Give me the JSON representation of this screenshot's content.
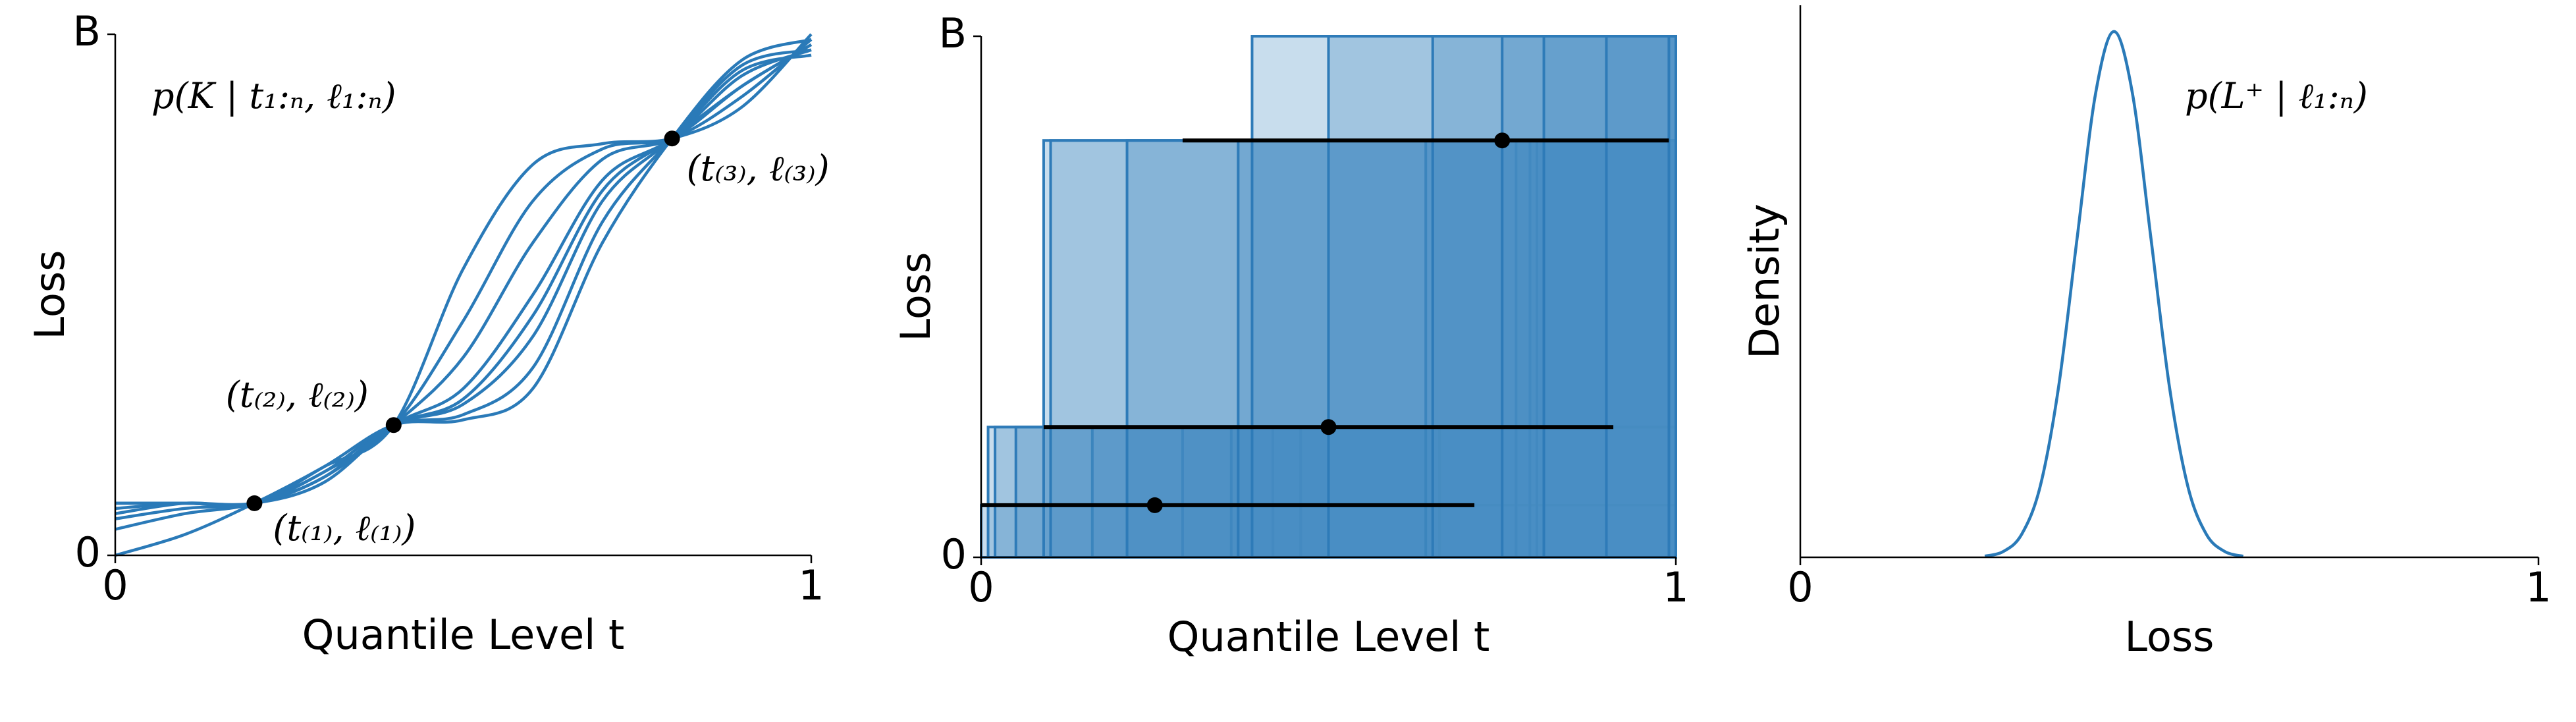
{
  "chart_data": [
    {
      "type": "line",
      "title": "p(K | t₁:ₙ, ℓ₁:ₙ)",
      "xlabel": "Quantile Level t",
      "ylabel": "Loss",
      "xlim": [
        0,
        1
      ],
      "ylim": [
        0,
        1
      ],
      "xticks": [
        0,
        1
      ],
      "yticks": [
        0,
        {
          "value": 1,
          "label": "B"
        }
      ],
      "color": "#2a7ab8",
      "x": [
        0,
        0.1,
        0.2,
        0.3,
        0.4,
        0.5,
        0.6,
        0.7,
        0.8,
        0.9,
        1
      ],
      "series": [
        {
          "values": [
            0.0,
            0.04,
            0.1,
            0.17,
            0.25,
            0.55,
            0.75,
            0.79,
            0.8,
            0.86,
            1.0
          ]
        },
        {
          "values": [
            0.05,
            0.08,
            0.1,
            0.16,
            0.25,
            0.45,
            0.68,
            0.78,
            0.8,
            0.88,
            0.99
          ]
        },
        {
          "values": [
            0.07,
            0.09,
            0.1,
            0.15,
            0.25,
            0.38,
            0.6,
            0.76,
            0.8,
            0.9,
            0.98
          ]
        },
        {
          "values": [
            0.09,
            0.1,
            0.1,
            0.14,
            0.25,
            0.32,
            0.5,
            0.72,
            0.8,
            0.92,
            0.97
          ]
        },
        {
          "values": [
            0.1,
            0.1,
            0.1,
            0.15,
            0.25,
            0.29,
            0.42,
            0.68,
            0.8,
            0.93,
            0.96
          ]
        },
        {
          "values": [
            0.1,
            0.1,
            0.1,
            0.16,
            0.25,
            0.27,
            0.36,
            0.64,
            0.8,
            0.94,
            0.97
          ]
        },
        {
          "values": [
            0.08,
            0.1,
            0.1,
            0.17,
            0.25,
            0.26,
            0.32,
            0.6,
            0.8,
            0.95,
            0.99
          ]
        },
        {
          "values": [
            0.1,
            0.1,
            0.1,
            0.15,
            0.25,
            0.3,
            0.46,
            0.7,
            0.8,
            0.9,
            0.98
          ]
        }
      ],
      "markers": {
        "color": "#000000",
        "x": [
          0.2,
          0.4,
          0.8
        ],
        "values": [
          0.1,
          0.25,
          0.8
        ]
      },
      "annotations": [
        "(t₍₁₎, ℓ₍₁₎)",
        "(t₍₂₎, ℓ₍₂₎)",
        "(t₍₃₎, ℓ₍₃₎)"
      ]
    },
    {
      "type": "bar",
      "xlabel": "Quantile Level t",
      "ylabel": "Loss",
      "xlim": [
        0,
        1
      ],
      "ylim": [
        0,
        1
      ],
      "xticks": [
        0,
        1
      ],
      "yticks": [
        0,
        {
          "value": 1,
          "label": "B"
        }
      ],
      "color": "#4a8fc4",
      "edgecolor": "#2e7bb8",
      "opacity": 0.3,
      "bars": {
        "x": [
          0,
          0.01,
          0.02,
          0.05,
          0.16,
          0.21,
          0.29,
          0.36,
          0.42,
          0.46,
          0.66,
          0.09,
          0.1,
          0.21,
          0.37,
          0.64,
          0.77,
          0.79,
          0.8,
          0.39,
          0.5,
          0.65,
          0.75,
          0.81,
          0.9,
          0.99
        ],
        "values": [
          0.1,
          0.25,
          0.25,
          0.25,
          0.25,
          0.25,
          0.25,
          0.25,
          0.25,
          0.25,
          0.25,
          0.8,
          0.8,
          0.8,
          0.8,
          0.8,
          0.8,
          0.8,
          0.8,
          1,
          1,
          1,
          1,
          1,
          1,
          1
        ]
      },
      "intervals": {
        "color": "#000000",
        "lo": [
          0,
          0.09,
          0.29
        ],
        "hi": [
          0.71,
          0.91,
          0.99
        ],
        "level": [
          0.1,
          0.25,
          0.8
        ],
        "point": [
          0.25,
          0.5,
          0.75
        ]
      }
    },
    {
      "type": "line",
      "title": "p(L⁺ | ℓ₁:ₙ)",
      "xlabel": "Loss",
      "ylabel": "Density",
      "xlim": [
        0,
        1
      ],
      "ylim": [
        0,
        1.05
      ],
      "xticks": [
        0,
        1
      ],
      "color": "#2a7ab8",
      "x": [
        0.25,
        0.275,
        0.3,
        0.325,
        0.35,
        0.375,
        0.4,
        0.425,
        0.45,
        0.475,
        0.5,
        0.525,
        0.55,
        0.575,
        0.6
      ],
      "values": [
        0.0022,
        0.011,
        0.044,
        0.135,
        0.325,
        0.607,
        0.882,
        1,
        0.882,
        0.607,
        0.325,
        0.135,
        0.044,
        0.011,
        0.002
      ]
    }
  ]
}
